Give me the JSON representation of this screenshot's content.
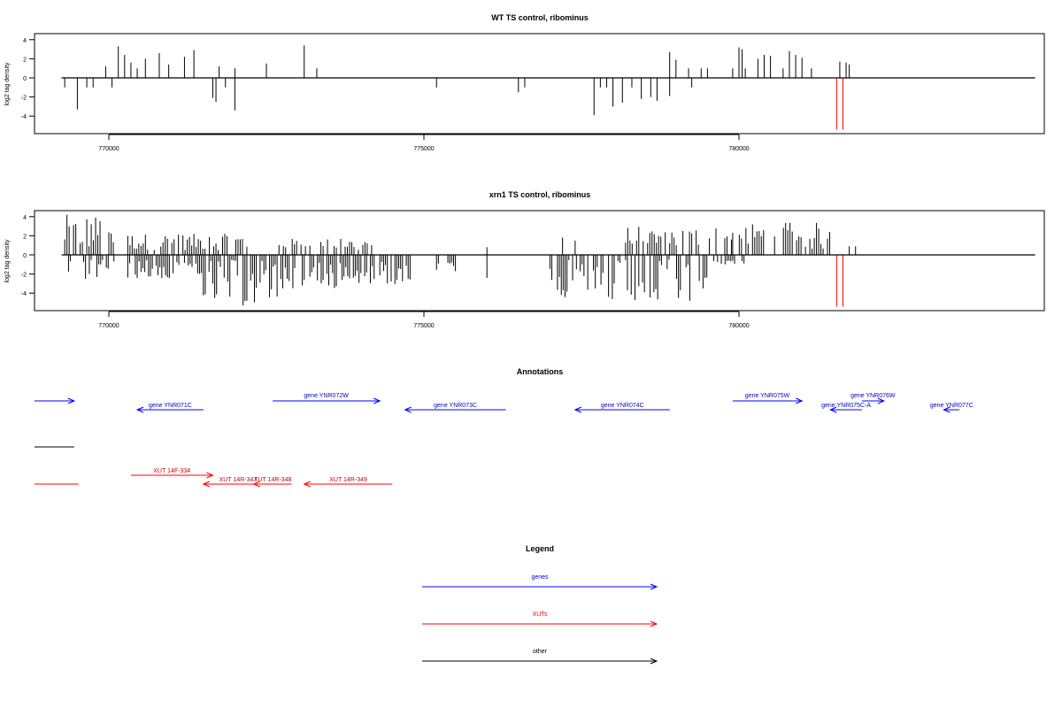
{
  "chart_data": [
    {
      "type": "bar",
      "title": "WT TS control, ribominus",
      "ylabel": "log2 tag density",
      "xlabel": "",
      "ylim": [
        -5.5,
        4.5
      ],
      "xlim": [
        768800,
        788500
      ],
      "yticks": [
        -4,
        -2,
        0,
        2,
        4
      ],
      "xticks": [
        770000,
        775000,
        780000
      ],
      "grid": false,
      "baseline_color": "#000000",
      "series": [
        {
          "color": "#000000",
          "x": [
            769950,
            770150,
            770250,
            770350,
            770450,
            770580,
            770800,
            770950,
            771200,
            771350,
            771750,
            772000,
            772500,
            773100,
            773300,
            778900,
            779000,
            779200,
            779400,
            779500,
            779900,
            780000,
            780050,
            780100,
            780300,
            780400,
            780500,
            780700,
            780800,
            780900,
            781000,
            781150,
            781600,
            781700,
            781750
          ],
          "values": [
            1.2,
            3.3,
            2.4,
            1.6,
            1.0,
            2.0,
            2.6,
            1.4,
            2.2,
            2.9,
            1.2,
            1.0,
            1.5,
            3.4,
            1.0,
            2.7,
            1.9,
            1.0,
            1.0,
            1.0,
            1.0,
            3.2,
            3.0,
            1.0,
            2.0,
            2.4,
            2.3,
            1.0,
            2.8,
            2.4,
            2.1,
            1.0,
            1.7,
            1.6,
            1.4
          ]
        },
        {
          "color": "#000000",
          "x": [
            769300,
            769500,
            769650,
            769750,
            770050,
            771650,
            771700,
            771850,
            772000,
            775200,
            776500,
            776600,
            777700,
            777800,
            777900,
            778000,
            778150,
            778300,
            778450,
            778600,
            778700,
            778900,
            779250
          ],
          "values": [
            -1.0,
            -3.3,
            -1.0,
            -1.0,
            -1.0,
            -2.1,
            -2.5,
            -1.0,
            -3.4,
            -1.0,
            -1.5,
            -1.0,
            -3.9,
            -1.0,
            -1.0,
            -3.0,
            -2.6,
            -1.0,
            -2.2,
            -2.0,
            -2.4,
            -1.9,
            -1.0
          ]
        },
        {
          "color": "#ff0000",
          "x": [
            781550,
            781650
          ],
          "values": [
            -5.4,
            -5.4
          ]
        }
      ]
    },
    {
      "type": "bar",
      "title": "xrn1 TS control, ribominus",
      "ylabel": "log2 tag density",
      "xlabel": "",
      "ylim": [
        -5.5,
        4.5
      ],
      "xlim": [
        768800,
        788500
      ],
      "yticks": [
        -4,
        -2,
        0,
        2,
        4
      ],
      "xticks": [
        770000,
        775000,
        780000
      ],
      "grid": false,
      "baseline_color": "#000000",
      "dense_regions_positive": [
        {
          "from": 769300,
          "to": 770100,
          "max": 4.2
        },
        {
          "from": 770300,
          "to": 772200,
          "max": 2.2
        },
        {
          "from": 772700,
          "to": 774200,
          "max": 1.7
        },
        {
          "from": 778200,
          "to": 779900,
          "max": 3.0
        },
        {
          "from": 779900,
          "to": 781500,
          "max": 3.4
        }
      ],
      "dense_regions_negative": [
        {
          "from": 769300,
          "to": 770100,
          "min": -2.7
        },
        {
          "from": 770300,
          "to": 771500,
          "min": -2.5
        },
        {
          "from": 771500,
          "to": 772800,
          "min": -5.4
        },
        {
          "from": 772800,
          "to": 773700,
          "min": -3.5
        },
        {
          "from": 773700,
          "to": 774800,
          "min": -3.2
        },
        {
          "from": 775200,
          "to": 775500,
          "min": -1.6
        },
        {
          "from": 777000,
          "to": 778200,
          "min": -4.9
        },
        {
          "from": 778200,
          "to": 779500,
          "min": -5.2
        },
        {
          "from": 779600,
          "to": 780100,
          "min": -1.0
        }
      ],
      "series": [
        {
          "color": "#000000",
          "x": [
            776000,
            777200,
            777400,
            781750,
            781850
          ],
          "values": [
            0.8,
            1.8,
            1.5,
            0.9,
            0.9
          ]
        },
        {
          "color": "#000000",
          "x": [
            775500,
            776000
          ],
          "values": [
            -1.7,
            -2.4
          ]
        },
        {
          "color": "#ff0000",
          "x": [
            781550,
            781650
          ],
          "values": [
            -5.4,
            -5.4
          ]
        }
      ]
    }
  ],
  "annotations": {
    "title": "Annotations",
    "genes": [
      {
        "label": "",
        "x1": 768800,
        "x2": 769450,
        "dir": "right",
        "row": 0
      },
      {
        "label": "gene YNR071C",
        "x1": 770450,
        "x2": 771500,
        "dir": "left",
        "row": 1
      },
      {
        "label": "gene YNR072W",
        "x1": 772600,
        "x2": 774300,
        "dir": "right",
        "row": 0
      },
      {
        "label": "gene YNR073C",
        "x1": 774700,
        "x2": 776300,
        "dir": "left",
        "row": 1
      },
      {
        "label": "gene YNR074C",
        "x1": 777400,
        "x2": 778900,
        "dir": "left",
        "row": 1
      },
      {
        "label": "gene YNR075W",
        "x1": 779900,
        "x2": 781000,
        "dir": "right",
        "row": 0
      },
      {
        "label": "gene YNR075C-A",
        "x1": 781450,
        "x2": 781950,
        "dir": "left",
        "row": 1
      },
      {
        "label": "gene YNR076W",
        "x1": 781950,
        "x2": 782300,
        "dir": "right",
        "row": -1
      },
      {
        "label": "gene YNR077C",
        "x1": 783250,
        "x2": 783500,
        "dir": "left",
        "row": 1
      }
    ],
    "other": [
      {
        "label": "",
        "x1": 768800,
        "x2": 769450
      }
    ],
    "xuts": [
      {
        "label": "",
        "x1": 768800,
        "x2": 769520,
        "dir": "none",
        "row": 1
      },
      {
        "label": "XUT 14F-334",
        "x1": 770350,
        "x2": 771650,
        "dir": "right",
        "row": 0
      },
      {
        "label": "XUT 14R-347",
        "x1": 771500,
        "x2": 772600,
        "dir": "left",
        "row": 1
      },
      {
        "label": "XUT 14R-348",
        "x1": 772300,
        "x2": 772900,
        "dir": "left",
        "row": 1
      },
      {
        "label": "XUT 14R-349",
        "x1": 773100,
        "x2": 774500,
        "dir": "left",
        "row": 1
      }
    ]
  },
  "legend": {
    "title": "Legend",
    "items": [
      {
        "label": "genes",
        "color": "#0000ff"
      },
      {
        "label": "XUTs",
        "color": "#ff0000"
      },
      {
        "label": "other",
        "color": "#000000"
      }
    ]
  },
  "colors": {
    "gene": "#0000ff",
    "xut": "#ff0000",
    "other": "#000000",
    "text_gene": "#0000cc",
    "text_xut": "#cc0000"
  }
}
